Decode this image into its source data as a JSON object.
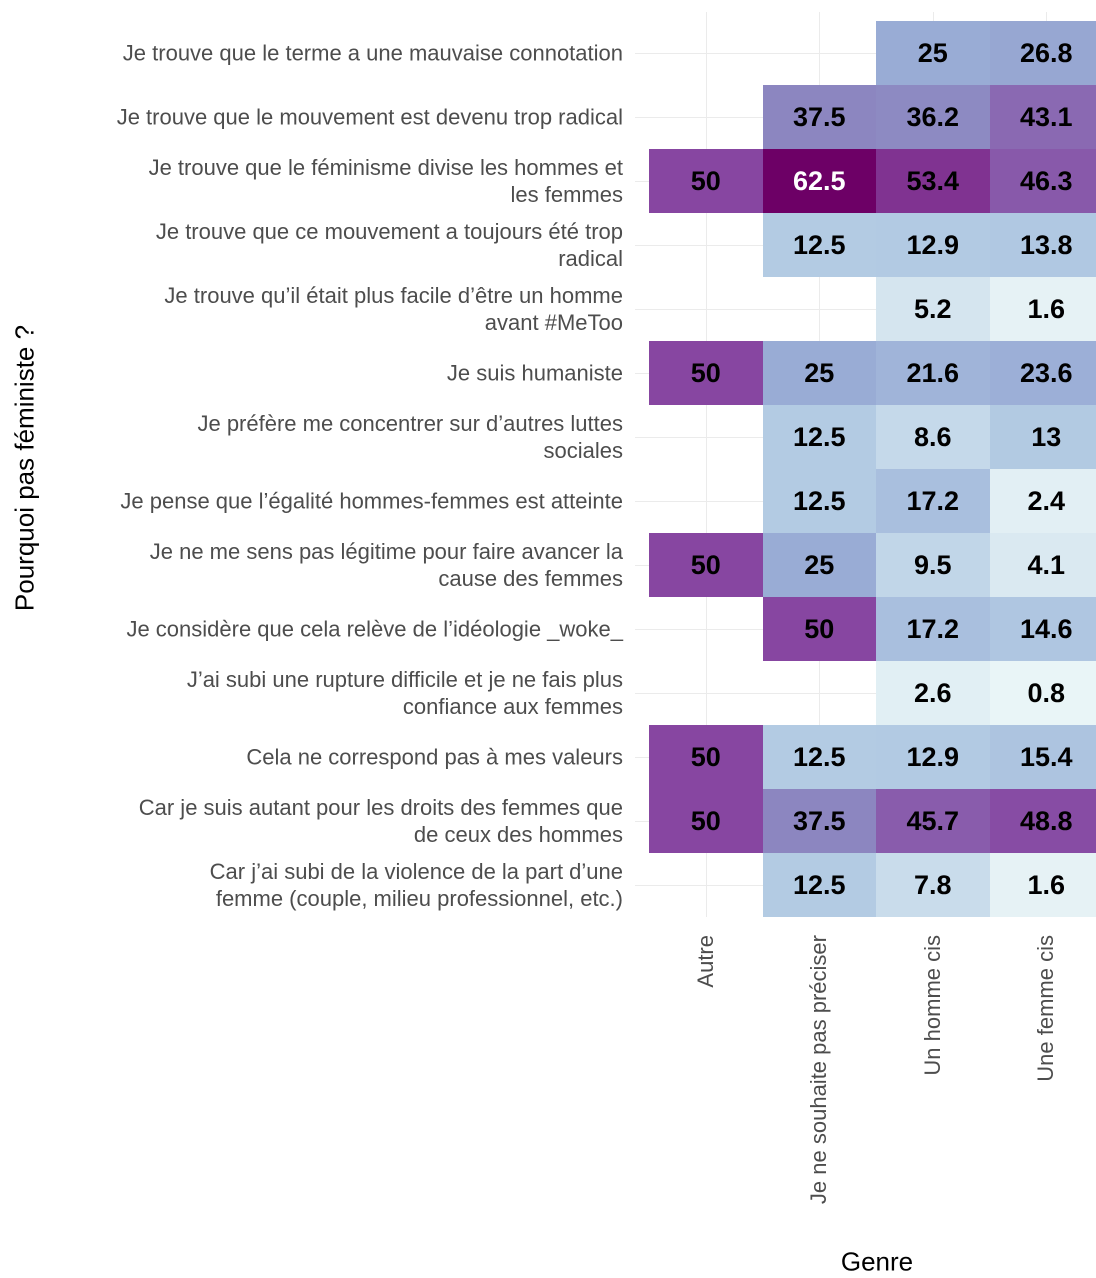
{
  "chart_data": {
    "type": "heatmap",
    "x_label": "Genre",
    "y_label": "Pourquoi pas féministe ?",
    "categories": [
      "Autre",
      "Je ne souhaite pas préciser",
      "Un homme cis",
      "Une femme cis"
    ],
    "rows": [
      "Je trouve que le terme a une mauvaise connotation",
      "Je trouve que le mouvement est devenu trop radical",
      "Je trouve que le féminisme divise les hommes et\nles femmes",
      "Je trouve que ce mouvement a toujours été trop\nradical",
      "Je trouve qu’il était plus facile d’être un homme\navant #MeToo",
      "Je suis humaniste",
      "Je préfère me concentrer sur d’autres luttes\nsociales",
      "Je pense que l’égalité hommes-femmes est atteinte",
      "Je ne me sens pas légitime pour faire avancer la\ncause des femmes",
      "Je considère que cela relève de l’idéologie _woke_",
      "J’ai subi une rupture difficile et je ne fais plus\nconfiance aux femmes",
      "Cela ne correspond pas à mes valeurs",
      "Car je suis autant pour les droits des femmes que\nde ceux des hommes",
      "Car j’ai subi de la violence de la part d’une\nfemme (couple, milieu professionnel, etc.)"
    ],
    "values": [
      [
        null,
        null,
        25,
        26.8
      ],
      [
        null,
        37.5,
        36.2,
        43.1
      ],
      [
        50,
        62.5,
        53.4,
        46.3
      ],
      [
        null,
        12.5,
        12.9,
        13.8
      ],
      [
        null,
        null,
        5.2,
        1.6
      ],
      [
        50,
        25,
        21.6,
        23.6
      ],
      [
        null,
        12.5,
        8.6,
        13
      ],
      [
        null,
        12.5,
        17.2,
        2.4
      ],
      [
        50,
        25,
        9.5,
        4.1
      ],
      [
        null,
        50,
        17.2,
        14.6
      ],
      [
        null,
        null,
        2.6,
        0.8
      ],
      [
        50,
        12.5,
        12.9,
        15.4
      ],
      [
        50,
        37.5,
        45.7,
        48.8
      ],
      [
        null,
        12.5,
        7.8,
        1.6
      ]
    ],
    "colorlim": [
      0,
      62.5
    ],
    "colorscale": [
      "#edf8f8",
      "#b3cbe3",
      "#99acd5",
      "#8c86c0",
      "#8746a1",
      "#6d0066"
    ],
    "grid": true
  }
}
